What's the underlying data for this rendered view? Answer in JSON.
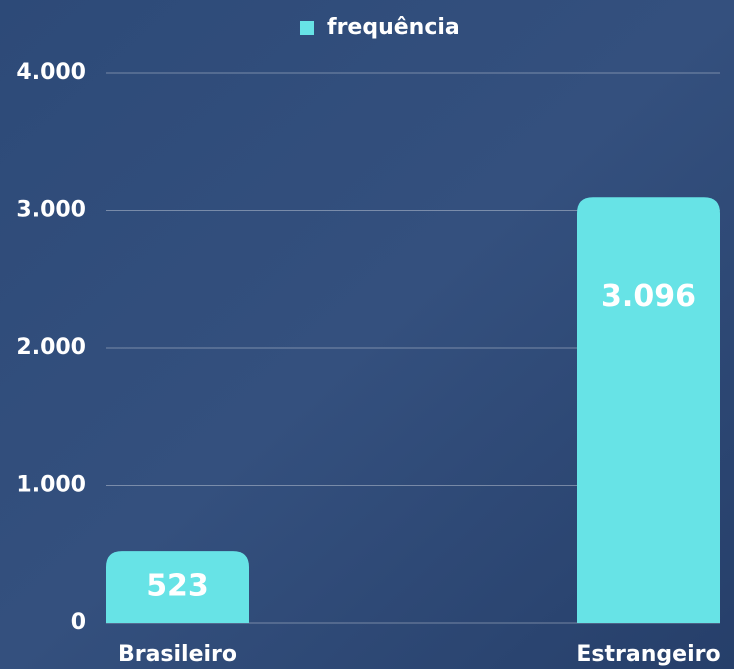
{
  "chart_data": {
    "type": "bar",
    "categories": [
      "Brasileiro",
      "Estrangeiro"
    ],
    "series": [
      {
        "name": "frequência",
        "color": "#67e3e6",
        "values": [
          523,
          3096
        ],
        "value_labels": [
          "523",
          "3.096"
        ]
      }
    ],
    "ylim": [
      0,
      4000
    ],
    "yticks": [
      0,
      {
        "value": 1000,
        "label": "1.000"
      },
      {
        "value": 2000,
        "label": "2.000"
      },
      {
        "value": 3000,
        "label": "3.000"
      },
      {
        "value": 4000,
        "label": "4.000"
      }
    ],
    "grid": true,
    "legend": "top"
  }
}
